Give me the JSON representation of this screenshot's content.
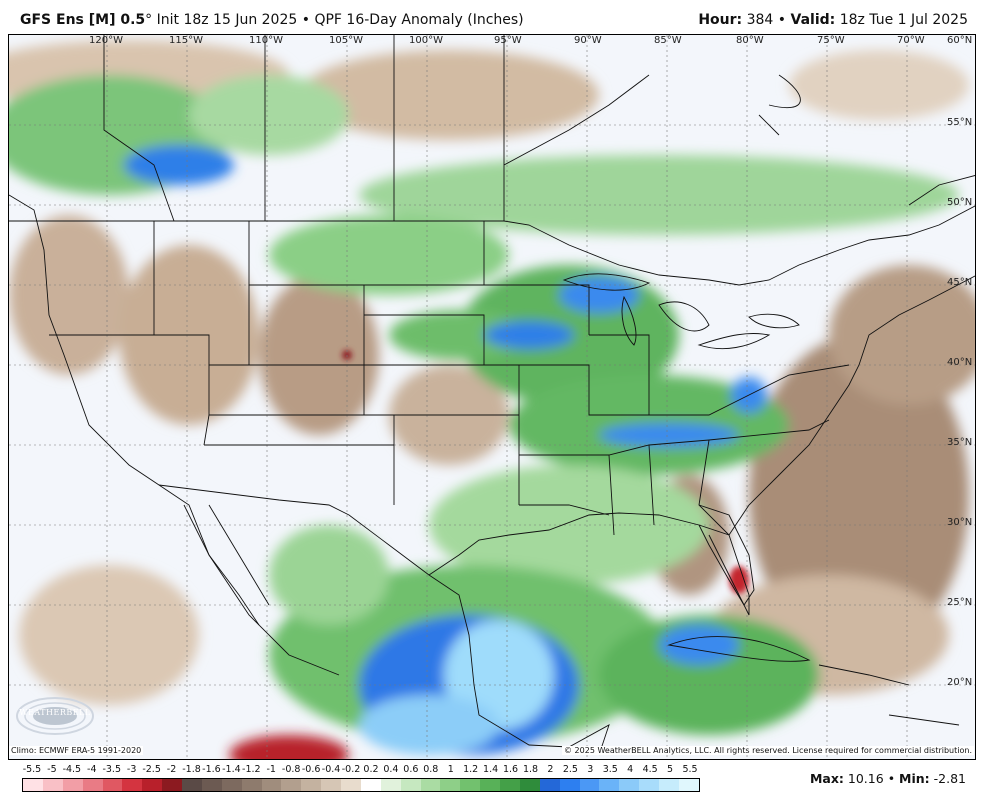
{
  "header": {
    "model": "GFS Ens [M] 0.5",
    "degree": "°",
    "init": "Init 18z 15 Jun 2025",
    "bullet": "•",
    "product": "QPF 16-Day Anomaly (Inches)",
    "hour_label": "Hour:",
    "hour_value": "384",
    "valid_label": "Valid:",
    "valid_value": "18z Tue 1 Jul 2025"
  },
  "map": {
    "longitude_labels": [
      "120°W",
      "115°W",
      "110°W",
      "105°W",
      "100°W",
      "95°W",
      "90°W",
      "85°W",
      "80°W",
      "75°W",
      "70°W",
      "60°N"
    ],
    "latitude_labels": [
      "55°N",
      "50°N",
      "45°N",
      "40°N",
      "35°N",
      "30°N",
      "25°N",
      "20°N"
    ],
    "climo_note": "Climo: ECMWF ERA-5 1991-2020",
    "copyright": "© 2025 WeatherBELL Analytics, LLC. All rights reserved. License required for commercial distribution.",
    "logo_text": "WEATHERBELL",
    "logo_icon": "weatherbell-logo-icon"
  },
  "legend": {
    "ticks": [
      "-5.5",
      "-5",
      "-4.5",
      "-4",
      "-3.5",
      "-3",
      "-2.5",
      "-2",
      "-1.8",
      "-1.6",
      "-1.4",
      "-1.2",
      "-1",
      "-0.8",
      "-0.6",
      "-0.4",
      "-0.2",
      "0.2",
      "0.4",
      "0.6",
      "0.8",
      "1",
      "1.2",
      "1.4",
      "1.6",
      "1.8",
      "2",
      "2.5",
      "3",
      "3.5",
      "4",
      "4.5",
      "5",
      "5.5"
    ],
    "colors": [
      "#ffe1e5",
      "#f9c0c6",
      "#f29ea6",
      "#e97b85",
      "#e05862",
      "#d43440",
      "#b8202b",
      "#8c1a20",
      "#5a4a46",
      "#6c5a52",
      "#7d6a5f",
      "#8e7b6d",
      "#a08d7d",
      "#b29f8e",
      "#c4b2a0",
      "#d6c6b5",
      "#e8dccd",
      "#ffffff",
      "#e1f2dc",
      "#c6e8c0",
      "#aadca3",
      "#8ecf88",
      "#72c16e",
      "#58b158",
      "#44a048",
      "#2f8c3b",
      "#2468d8",
      "#2d7ff0",
      "#4b98f5",
      "#6ab3f8",
      "#8bcaf9",
      "#a8dcfb",
      "#c6ecfc",
      "#e0f7fd"
    ]
  },
  "stats": {
    "max_label": "Max:",
    "max_value": "10.16",
    "bullet": "•",
    "min_label": "Min:",
    "min_value": "-2.81"
  }
}
